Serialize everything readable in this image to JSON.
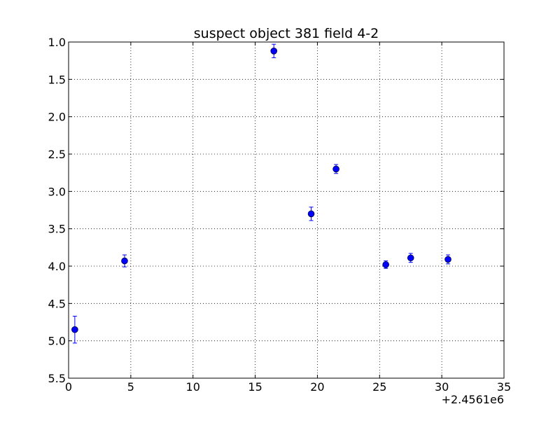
{
  "chart_data": {
    "type": "scatter",
    "title": "suspect object 381 field 4-2",
    "xlabel": "",
    "ylabel": "",
    "x_offset_label": "+2.4561e6",
    "xlim": [
      0,
      35
    ],
    "ylim": [
      1.0,
      5.5
    ],
    "y_inverted": true,
    "grid": true,
    "x_ticks": [
      0,
      5,
      10,
      15,
      20,
      25,
      30,
      35
    ],
    "x_tick_labels": [
      "0",
      "5",
      "10",
      "15",
      "20",
      "25",
      "30",
      "35"
    ],
    "y_ticks": [
      1.0,
      1.5,
      2.0,
      2.5,
      3.0,
      3.5,
      4.0,
      4.5,
      5.0,
      5.5
    ],
    "y_tick_labels": [
      "1.0",
      "1.5",
      "2.0",
      "2.5",
      "3.0",
      "3.5",
      "4.0",
      "4.5",
      "5.0",
      "5.5"
    ],
    "marker_color": "#0000ff",
    "points": [
      {
        "x": 0.5,
        "y": 4.85,
        "yerr": 0.18
      },
      {
        "x": 4.5,
        "y": 3.93,
        "yerr": 0.08
      },
      {
        "x": 16.5,
        "y": 1.12,
        "yerr": 0.09
      },
      {
        "x": 19.5,
        "y": 3.3,
        "yerr": 0.09
      },
      {
        "x": 21.5,
        "y": 2.7,
        "yerr": 0.06
      },
      {
        "x": 25.5,
        "y": 3.98,
        "yerr": 0.05
      },
      {
        "x": 27.5,
        "y": 3.89,
        "yerr": 0.06
      },
      {
        "x": 30.5,
        "y": 3.91,
        "yerr": 0.06
      }
    ]
  }
}
